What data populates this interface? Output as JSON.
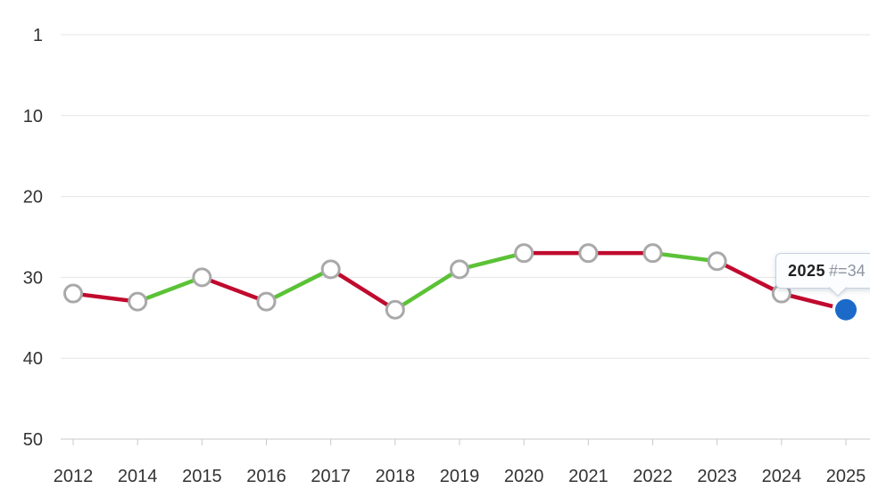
{
  "colors": {
    "improve_green": "#5bc236",
    "decline_red": "#c00a2e",
    "current_blue": "#1b6ac9",
    "marker_stroke": "#a9a9a9",
    "marker_fill": "#ffffff",
    "gridline": "#e5e5e5",
    "axis_line": "#c9c9c9",
    "label_text": "#333333",
    "tooltip_bg": "#fbfdff",
    "tooltip_border": "#c6d1df",
    "tooltip_year_text": "#1f1f1f",
    "tooltip_value_text": "#8d95a0"
  },
  "tooltip": {
    "year": "2025",
    "value": "#=34"
  },
  "chart_data": {
    "type": "line",
    "title": "",
    "xlabel": "",
    "ylabel": "",
    "categories": [
      "2012",
      "2014",
      "2015",
      "2016",
      "2017",
      "2018",
      "2019",
      "2020",
      "2021",
      "2022",
      "2023",
      "2024",
      "2025"
    ],
    "values": [
      32,
      33,
      30,
      33,
      29,
      34,
      29,
      27,
      27,
      27,
      28,
      32,
      34
    ],
    "segment_colors": [
      "red",
      "green",
      "red",
      "green",
      "red",
      "green",
      "green",
      "red",
      "red",
      "green",
      "red",
      "red"
    ],
    "y_tick_labels": [
      "1",
      "10",
      "20",
      "30",
      "40",
      "50"
    ],
    "y_tick_values": [
      0,
      10,
      20,
      30,
      40,
      50
    ],
    "ylim": [
      0,
      50
    ],
    "y_axis_inverted_rank_scale": true,
    "grid": "horizontal",
    "legend": "none",
    "highlight_last_point": true,
    "last_point_annotation": "2025 #=34"
  }
}
